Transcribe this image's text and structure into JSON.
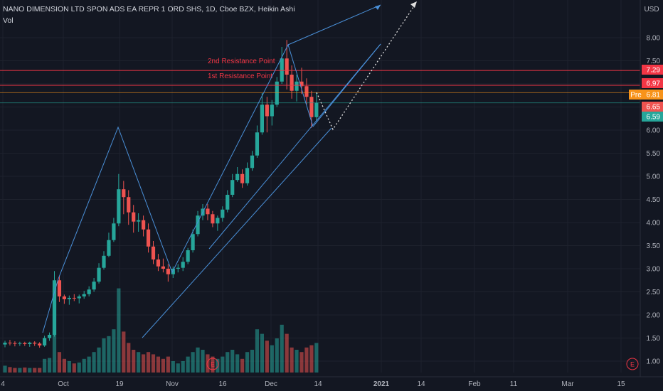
{
  "header": {
    "symbol_line": "NANO DIMENSION LTD SPON ADS EA REPR 1 ORD SHS, 1D, Cboe BZX, Heikin Ashi",
    "volume_label": "Vol"
  },
  "currency": "USD",
  "colors": {
    "background": "#131722",
    "up": "#26a69a",
    "down": "#ef5350",
    "trendline": "#2962ff",
    "resistance": "#f23645",
    "premarket": "#f7931a",
    "text": "#b2b5be"
  },
  "chart_data": {
    "type": "candlestick",
    "chart_style": "Heikin Ashi",
    "timeframe": "1D",
    "exchange": "Cboe BZX",
    "y_axis": {
      "ticks": [
        "8.00",
        "7.50",
        "7.00",
        "6.50",
        "6.00",
        "5.50",
        "5.00",
        "4.50",
        "4.00",
        "3.50",
        "3.00",
        "2.50",
        "2.00",
        "1.50",
        "1.00"
      ],
      "range": [
        0.77,
        8.35
      ]
    },
    "x_axis": {
      "ticks": [
        "4",
        "Oct",
        "19",
        "Nov",
        "16",
        "Dec",
        "14",
        "2021",
        "14",
        "Feb",
        "11",
        "Mar",
        "15"
      ]
    },
    "candles": [
      {
        "x": "Sep 21",
        "o": 1.36,
        "h": 1.44,
        "l": 1.3,
        "c": 1.4,
        "v": 0.15
      },
      {
        "x": "Sep 22",
        "o": 1.4,
        "h": 1.46,
        "l": 1.34,
        "c": 1.39,
        "v": 0.12
      },
      {
        "x": "Sep 23",
        "o": 1.39,
        "h": 1.43,
        "l": 1.32,
        "c": 1.38,
        "v": 0.1
      },
      {
        "x": "Sep 24",
        "o": 1.38,
        "h": 1.42,
        "l": 1.33,
        "c": 1.39,
        "v": 0.1
      },
      {
        "x": "Sep 25",
        "o": 1.39,
        "h": 1.42,
        "l": 1.33,
        "c": 1.37,
        "v": 0.11
      },
      {
        "x": "Sep 28",
        "o": 1.37,
        "h": 1.42,
        "l": 1.31,
        "c": 1.4,
        "v": 0.1
      },
      {
        "x": "Sep 29",
        "o": 1.4,
        "h": 1.43,
        "l": 1.33,
        "c": 1.38,
        "v": 0.1
      },
      {
        "x": "Sep 30",
        "o": 1.38,
        "h": 1.41,
        "l": 1.29,
        "c": 1.34,
        "v": 0.1
      },
      {
        "x": "Oct 1",
        "o": 1.34,
        "h": 1.55,
        "l": 1.31,
        "c": 1.5,
        "v": 0.3
      },
      {
        "x": "Oct 2",
        "o": 1.5,
        "h": 1.62,
        "l": 1.44,
        "c": 1.57,
        "v": 0.32
      },
      {
        "x": "Oct 5",
        "o": 1.57,
        "h": 2.95,
        "l": 1.53,
        "c": 2.75,
        "v": 1.85
      },
      {
        "x": "Oct 6",
        "o": 2.75,
        "h": 2.85,
        "l": 2.28,
        "c": 2.4,
        "v": 0.45
      },
      {
        "x": "Oct 7",
        "o": 2.4,
        "h": 2.44,
        "l": 2.24,
        "c": 2.34,
        "v": 0.3
      },
      {
        "x": "Oct 8",
        "o": 2.34,
        "h": 2.42,
        "l": 2.22,
        "c": 2.37,
        "v": 0.25
      },
      {
        "x": "Oct 9",
        "o": 2.37,
        "h": 2.45,
        "l": 2.3,
        "c": 2.36,
        "v": 0.2
      },
      {
        "x": "Oct 12",
        "o": 2.36,
        "h": 2.44,
        "l": 2.25,
        "c": 2.4,
        "v": 0.22
      },
      {
        "x": "Oct 13",
        "o": 2.4,
        "h": 2.52,
        "l": 2.35,
        "c": 2.45,
        "v": 0.3
      },
      {
        "x": "Oct 14",
        "o": 2.45,
        "h": 2.62,
        "l": 2.4,
        "c": 2.55,
        "v": 0.35
      },
      {
        "x": "Oct 15",
        "o": 2.55,
        "h": 2.8,
        "l": 2.5,
        "c": 2.72,
        "v": 0.45
      },
      {
        "x": "Oct 16",
        "o": 2.72,
        "h": 3.12,
        "l": 2.68,
        "c": 3.02,
        "v": 0.55
      },
      {
        "x": "Oct 19",
        "o": 3.02,
        "h": 3.38,
        "l": 2.98,
        "c": 3.28,
        "v": 0.75
      },
      {
        "x": "Oct 20",
        "o": 3.28,
        "h": 3.78,
        "l": 3.25,
        "c": 3.62,
        "v": 0.8
      },
      {
        "x": "Oct 21",
        "o": 3.62,
        "h": 4.1,
        "l": 3.58,
        "c": 3.98,
        "v": 0.95
      },
      {
        "x": "Oct 22",
        "o": 3.98,
        "h": 5.05,
        "l": 3.92,
        "c": 4.72,
        "v": 1.85
      },
      {
        "x": "Oct 23",
        "o": 4.72,
        "h": 4.9,
        "l": 4.18,
        "c": 4.55,
        "v": 0.9
      },
      {
        "x": "Oct 26",
        "o": 4.55,
        "h": 4.7,
        "l": 3.95,
        "c": 4.22,
        "v": 0.65
      },
      {
        "x": "Oct 27",
        "o": 4.22,
        "h": 4.38,
        "l": 3.78,
        "c": 4.02,
        "v": 0.5
      },
      {
        "x": "Oct 28",
        "o": 4.02,
        "h": 4.2,
        "l": 3.8,
        "c": 4.05,
        "v": 0.45
      },
      {
        "x": "Oct 29",
        "o": 4.05,
        "h": 4.15,
        "l": 3.7,
        "c": 3.85,
        "v": 0.4
      },
      {
        "x": "Oct 30",
        "o": 3.85,
        "h": 3.98,
        "l": 3.35,
        "c": 3.48,
        "v": 0.45
      },
      {
        "x": "Nov 2",
        "o": 3.48,
        "h": 3.6,
        "l": 3.1,
        "c": 3.2,
        "v": 0.4
      },
      {
        "x": "Nov 3",
        "o": 3.2,
        "h": 3.32,
        "l": 2.95,
        "c": 3.05,
        "v": 0.35
      },
      {
        "x": "Nov 4",
        "o": 3.05,
        "h": 3.22,
        "l": 2.92,
        "c": 3.0,
        "v": 0.3
      },
      {
        "x": "Nov 5",
        "o": 3.0,
        "h": 3.1,
        "l": 2.72,
        "c": 2.88,
        "v": 0.35
      },
      {
        "x": "Nov 6",
        "o": 2.88,
        "h": 3.05,
        "l": 2.8,
        "c": 3.0,
        "v": 0.25
      },
      {
        "x": "Nov 9",
        "o": 3.0,
        "h": 3.1,
        "l": 2.92,
        "c": 3.02,
        "v": 0.2
      },
      {
        "x": "Nov 10",
        "o": 3.02,
        "h": 3.25,
        "l": 2.95,
        "c": 3.15,
        "v": 0.25
      },
      {
        "x": "Nov 11",
        "o": 3.15,
        "h": 3.45,
        "l": 3.1,
        "c": 3.4,
        "v": 0.35
      },
      {
        "x": "Nov 12",
        "o": 3.4,
        "h": 3.85,
        "l": 3.35,
        "c": 3.75,
        "v": 0.45
      },
      {
        "x": "Nov 13",
        "o": 3.75,
        "h": 4.25,
        "l": 3.7,
        "c": 4.15,
        "v": 0.55
      },
      {
        "x": "Nov 16",
        "o": 4.15,
        "h": 4.4,
        "l": 4.05,
        "c": 4.3,
        "v": 0.5
      },
      {
        "x": "Nov 17",
        "o": 4.3,
        "h": 4.4,
        "l": 4.05,
        "c": 4.18,
        "v": 0.4
      },
      {
        "x": "Nov 18",
        "o": 4.18,
        "h": 4.25,
        "l": 3.9,
        "c": 3.98,
        "v": 0.35
      },
      {
        "x": "Nov 19",
        "o": 3.98,
        "h": 4.15,
        "l": 3.82,
        "c": 4.1,
        "v": 0.3
      },
      {
        "x": "Nov 20",
        "o": 4.1,
        "h": 4.35,
        "l": 4.02,
        "c": 4.28,
        "v": 0.35
      },
      {
        "x": "Nov 23",
        "o": 4.28,
        "h": 4.7,
        "l": 4.22,
        "c": 4.6,
        "v": 0.45
      },
      {
        "x": "Nov 24",
        "o": 4.6,
        "h": 5.05,
        "l": 4.55,
        "c": 4.92,
        "v": 0.5
      },
      {
        "x": "Nov 25",
        "o": 4.92,
        "h": 5.2,
        "l": 4.88,
        "c": 5.05,
        "v": 0.4
      },
      {
        "x": "Nov 27",
        "o": 5.05,
        "h": 5.15,
        "l": 4.75,
        "c": 4.85,
        "v": 0.3
      },
      {
        "x": "Nov 30",
        "o": 4.85,
        "h": 5.3,
        "l": 4.8,
        "c": 5.18,
        "v": 0.45
      },
      {
        "x": "Dec 1",
        "o": 5.18,
        "h": 5.55,
        "l": 5.12,
        "c": 5.45,
        "v": 0.5
      },
      {
        "x": "Dec 2",
        "o": 5.45,
        "h": 6.1,
        "l": 5.4,
        "c": 5.95,
        "v": 0.95
      },
      {
        "x": "Dec 3",
        "o": 5.95,
        "h": 6.8,
        "l": 5.9,
        "c": 6.55,
        "v": 0.85
      },
      {
        "x": "Dec 4",
        "o": 6.55,
        "h": 6.72,
        "l": 5.95,
        "c": 6.3,
        "v": 0.7
      },
      {
        "x": "Dec 7",
        "o": 6.3,
        "h": 6.65,
        "l": 6.1,
        "c": 6.55,
        "v": 0.6
      },
      {
        "x": "Dec 8",
        "o": 6.55,
        "h": 7.15,
        "l": 6.5,
        "c": 7.05,
        "v": 0.75
      },
      {
        "x": "Dec 9",
        "o": 7.05,
        "h": 7.8,
        "l": 7.0,
        "c": 7.55,
        "v": 1.05
      },
      {
        "x": "Dec 10",
        "o": 7.55,
        "h": 7.95,
        "l": 6.88,
        "c": 7.2,
        "v": 0.85
      },
      {
        "x": "Dec 11",
        "o": 7.2,
        "h": 7.4,
        "l": 6.68,
        "c": 6.85,
        "v": 0.55
      },
      {
        "x": "Dec 14",
        "o": 6.85,
        "h": 7.2,
        "l": 6.62,
        "c": 7.05,
        "v": 0.5
      },
      {
        "x": "Dec 15",
        "o": 7.05,
        "h": 7.35,
        "l": 6.78,
        "c": 6.95,
        "v": 0.45
      },
      {
        "x": "Dec 16",
        "o": 6.95,
        "h": 7.12,
        "l": 6.55,
        "c": 6.72,
        "v": 0.55
      },
      {
        "x": "Dec 17",
        "o": 6.72,
        "h": 6.85,
        "l": 6.05,
        "c": 6.28,
        "v": 0.6
      },
      {
        "x": "Dec 18",
        "o": 6.28,
        "h": 6.8,
        "l": 6.2,
        "c": 6.59,
        "v": 0.65
      }
    ],
    "volume_marker_stacked": "volume shown as histogram under price, same colors",
    "price_levels": [
      {
        "label": "2nd Resistance Point",
        "price": 7.29,
        "tag": "7.29",
        "tag_color": "#f23645"
      },
      {
        "label": "1st Resistance Point",
        "price": 6.97,
        "tag": "6.97",
        "tag_color": "#f23645"
      }
    ],
    "price_tags": [
      {
        "price": 6.81,
        "text": "6.81",
        "prefix": "Pre",
        "color": "#f7931a"
      },
      {
        "price": 6.65,
        "text": "6.65",
        "color": "#ef5350"
      },
      {
        "price": 6.59,
        "text": "6.59",
        "color": "#26a69a"
      }
    ],
    "events": [
      "E",
      "E"
    ]
  }
}
